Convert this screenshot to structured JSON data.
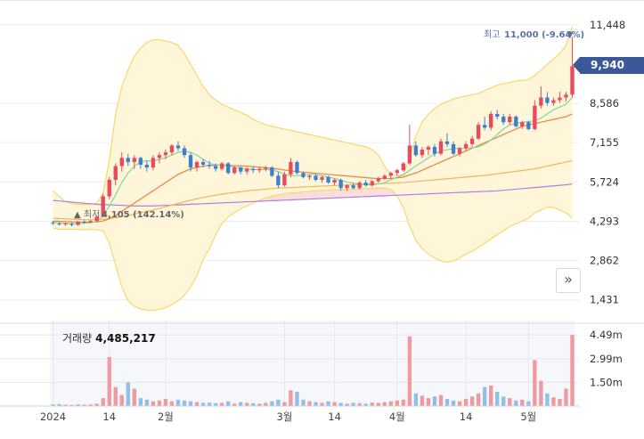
{
  "chart_data": [
    {
      "type": "candlestick",
      "title": "",
      "yticks": [
        "11,448",
        "9,940",
        "8,586",
        "7,155",
        "5,724",
        "4,293",
        "2,862",
        "1,431"
      ],
      "ylim": [
        1000,
        11700
      ],
      "current_price_label": "9,940",
      "current_price": 9940,
      "high_annotation": {
        "prefix": "최고",
        "value": "11,000 (-9.64%)",
        "marker": "▼",
        "price": 11000
      },
      "low_annotation": {
        "prefix": "▲ 최저",
        "value": "4,105 (142.14%)",
        "price": 4105
      },
      "grid": true,
      "candles": [
        [
          4250,
          4300,
          4150,
          4220
        ],
        [
          4200,
          4260,
          4140,
          4180
        ],
        [
          4180,
          4240,
          4120,
          4210
        ],
        [
          4200,
          4250,
          4105,
          4160
        ],
        [
          4160,
          4300,
          4130,
          4280
        ],
        [
          4280,
          4330,
          4200,
          4240
        ],
        [
          4250,
          4340,
          4220,
          4300
        ],
        [
          4300,
          4500,
          4250,
          4460
        ],
        [
          4460,
          5300,
          4420,
          5200
        ],
        [
          5200,
          5900,
          5100,
          5800
        ],
        [
          5800,
          6400,
          5600,
          6300
        ],
        [
          6300,
          6800,
          6100,
          6600
        ],
        [
          6600,
          6750,
          6300,
          6450
        ],
        [
          6450,
          6700,
          6200,
          6600
        ],
        [
          6600,
          6650,
          6200,
          6350
        ],
        [
          6350,
          6500,
          6100,
          6250
        ],
        [
          6250,
          6700,
          6150,
          6600
        ],
        [
          6600,
          6800,
          6400,
          6700
        ],
        [
          6700,
          6900,
          6550,
          6800
        ],
        [
          6800,
          7100,
          6700,
          7050
        ],
        [
          7050,
          7200,
          6850,
          6950
        ],
        [
          6950,
          7050,
          6600,
          6700
        ],
        [
          6700,
          6800,
          6100,
          6250
        ],
        [
          6250,
          6500,
          6100,
          6450
        ],
        [
          6450,
          6550,
          6250,
          6350
        ],
        [
          6350,
          6500,
          6200,
          6300
        ],
        [
          6300,
          6400,
          6100,
          6200
        ],
        [
          6200,
          6450,
          6150,
          6400
        ],
        [
          6400,
          6450,
          6000,
          6050
        ],
        [
          6050,
          6300,
          6000,
          6250
        ],
        [
          6250,
          6300,
          6000,
          6100
        ],
        [
          6100,
          6250,
          6000,
          6200
        ],
        [
          6200,
          6300,
          6050,
          6150
        ],
        [
          6150,
          6250,
          6050,
          6200
        ],
        [
          6200,
          6300,
          6100,
          6250
        ],
        [
          6250,
          6300,
          5900,
          5950
        ],
        [
          5950,
          6100,
          5500,
          5600
        ],
        [
          5600,
          6100,
          5550,
          6000
        ],
        [
          6000,
          6600,
          5900,
          6450
        ],
        [
          6450,
          6500,
          6000,
          6050
        ],
        [
          6050,
          6100,
          5850,
          5900
        ],
        [
          5900,
          6000,
          5800,
          5950
        ],
        [
          5950,
          6000,
          5750,
          5800
        ],
        [
          5800,
          5950,
          5700,
          5900
        ],
        [
          5900,
          5950,
          5650,
          5700
        ],
        [
          5700,
          5850,
          5600,
          5800
        ],
        [
          5800,
          5850,
          5400,
          5500
        ],
        [
          5500,
          5650,
          5400,
          5600
        ],
        [
          5600,
          5700,
          5450,
          5500
        ],
        [
          5500,
          5750,
          5450,
          5700
        ],
        [
          5700,
          5800,
          5550,
          5600
        ],
        [
          5600,
          5800,
          5550,
          5750
        ],
        [
          5750,
          5900,
          5700,
          5850
        ],
        [
          5850,
          6000,
          5800,
          5950
        ],
        [
          5950,
          6100,
          5850,
          6050
        ],
        [
          6050,
          6200,
          5950,
          6150
        ],
        [
          6150,
          6450,
          6100,
          6400
        ],
        [
          6400,
          7800,
          6350,
          7050
        ],
        [
          7050,
          7200,
          6650,
          6700
        ],
        [
          6700,
          7000,
          6600,
          6900
        ],
        [
          6900,
          7050,
          6700,
          7000
        ],
        [
          7000,
          7100,
          6650,
          6750
        ],
        [
          6750,
          7300,
          6700,
          7200
        ],
        [
          7200,
          7500,
          7000,
          7100
        ],
        [
          7100,
          7200,
          6700,
          6750
        ],
        [
          6750,
          7000,
          6650,
          6950
        ],
        [
          6950,
          7200,
          6850,
          7100
        ],
        [
          7100,
          7400,
          7000,
          7300
        ],
        [
          7300,
          7900,
          7250,
          7800
        ],
        [
          7800,
          8100,
          7600,
          7700
        ],
        [
          7700,
          8300,
          7600,
          8200
        ],
        [
          8200,
          8350,
          8000,
          8100
        ],
        [
          8100,
          8200,
          7800,
          7900
        ],
        [
          7900,
          8200,
          7800,
          8100
        ],
        [
          8100,
          8150,
          7700,
          7750
        ],
        [
          7750,
          7950,
          7650,
          7900
        ],
        [
          7900,
          7950,
          7600,
          7650
        ],
        [
          7650,
          8700,
          7600,
          8500
        ],
        [
          8500,
          9200,
          8400,
          8800
        ],
        [
          8800,
          9000,
          8500,
          8600
        ],
        [
          8600,
          8800,
          8500,
          8700
        ],
        [
          8700,
          9000,
          8600,
          8800
        ],
        [
          8800,
          9000,
          8650,
          8900
        ],
        [
          8900,
          11000,
          8800,
          9940
        ]
      ],
      "upper_band": [
        5400,
        5200,
        5000,
        4950,
        4900,
        4900,
        4900,
        4950,
        5300,
        6500,
        8200,
        9200,
        9800,
        10300,
        10600,
        10800,
        10900,
        10900,
        10850,
        10800,
        10700,
        10400,
        10000,
        9600,
        9200,
        8900,
        8700,
        8550,
        8450,
        8350,
        8250,
        8150,
        8000,
        7900,
        7800,
        7750,
        7700,
        7650,
        7600,
        7550,
        7500,
        7450,
        7400,
        7350,
        7300,
        7250,
        7200,
        7150,
        7100,
        7050,
        7000,
        6900,
        6700,
        6300,
        6000,
        5950,
        6000,
        6600,
        7400,
        7900,
        8200,
        8400,
        8550,
        8650,
        8750,
        8800,
        8850,
        8900,
        8950,
        9050,
        9150,
        9250,
        9300,
        9350,
        9400,
        9420,
        9450,
        9600,
        9800,
        10000,
        10200,
        10400,
        10700,
        11400
      ],
      "lower_band": [
        4050,
        4000,
        4000,
        4000,
        3990,
        3990,
        3990,
        3980,
        3950,
        3500,
        2700,
        1900,
        1400,
        1200,
        1100,
        1050,
        1050,
        1080,
        1150,
        1250,
        1400,
        1600,
        1900,
        2300,
        2900,
        3300,
        3800,
        4200,
        4450,
        4600,
        4750,
        4850,
        4950,
        5050,
        5150,
        5200,
        5250,
        5300,
        5320,
        5340,
        5360,
        5380,
        5400,
        5420,
        5430,
        5440,
        5440,
        5450,
        5460,
        5470,
        5480,
        5490,
        5500,
        5500,
        5450,
        5200,
        4800,
        4100,
        3600,
        3300,
        3100,
        2950,
        2850,
        2800,
        2850,
        2950,
        3100,
        3200,
        3350,
        3500,
        3650,
        3800,
        3950,
        4100,
        4200,
        4300,
        4400,
        4600,
        4700,
        4800,
        4800,
        4700,
        4600,
        4400
      ],
      "ma_short": [
        4250,
        4230,
        4220,
        4200,
        4200,
        4220,
        4240,
        4280,
        4500,
        4850,
        5250,
        5700,
        6050,
        6300,
        6450,
        6500,
        6480,
        6550,
        6600,
        6700,
        6800,
        6850,
        6800,
        6700,
        6550,
        6400,
        6350,
        6330,
        6300,
        6260,
        6230,
        6200,
        6180,
        6170,
        6180,
        6160,
        6100,
        6000,
        5950,
        5950,
        5980,
        6000,
        6000,
        5950,
        5900,
        5850,
        5780,
        5720,
        5680,
        5650,
        5620,
        5610,
        5650,
        5700,
        5800,
        5900,
        5980,
        6150,
        6300,
        6450,
        6600,
        6750,
        6850,
        6900,
        6930,
        6950,
        6950,
        6970,
        7000,
        7100,
        7250,
        7450,
        7650,
        7800,
        7850,
        7900,
        7920,
        7950,
        8050,
        8200,
        8350,
        8450,
        8550,
        8800
      ],
      "ma_mid": [
        4300,
        4290,
        4280,
        4270,
        4260,
        4260,
        4260,
        4270,
        4300,
        4380,
        4500,
        4650,
        4800,
        4950,
        5100,
        5250,
        5400,
        5550,
        5700,
        5850,
        6000,
        6100,
        6200,
        6250,
        6300,
        6320,
        6330,
        6340,
        6330,
        6320,
        6310,
        6300,
        6280,
        6260,
        6240,
        6220,
        6190,
        6160,
        6130,
        6100,
        6080,
        6060,
        6040,
        6020,
        6000,
        5980,
        5960,
        5940,
        5920,
        5900,
        5880,
        5860,
        5850,
        5850,
        5850,
        5870,
        5900,
        5980,
        6050,
        6150,
        6250,
        6350,
        6450,
        6550,
        6650,
        6750,
        6850,
        6950,
        7050,
        7150,
        7250,
        7350,
        7450,
        7550,
        7650,
        7750,
        7800,
        7850,
        7900,
        7950,
        8000,
        8050,
        8100,
        8200
      ],
      "ma_long": [
        4400,
        4390,
        4380,
        4370,
        4360,
        4350,
        4350,
        4350,
        4360,
        4390,
        4420,
        4460,
        4500,
        4550,
        4600,
        4650,
        4700,
        4760,
        4820,
        4880,
        4940,
        5000,
        5060,
        5110,
        5160,
        5200,
        5240,
        5280,
        5310,
        5340,
        5370,
        5400,
        5420,
        5440,
        5460,
        5480,
        5500,
        5510,
        5520,
        5530,
        5540,
        5550,
        5560,
        5570,
        5580,
        5590,
        5600,
        5610,
        5620,
        5630,
        5640,
        5650,
        5660,
        5670,
        5680,
        5690,
        5700,
        5720,
        5740,
        5760,
        5780,
        5800,
        5820,
        5840,
        5860,
        5880,
        5900,
        5920,
        5940,
        5960,
        5990,
        6020,
        6050,
        6080,
        6110,
        6140,
        6170,
        6200,
        6250,
        6300,
        6350,
        6400,
        6450,
        6500
      ],
      "ma_longest": [
        5050,
        5030,
        5010,
        4990,
        4970,
        4950,
        4930,
        4910,
        4900,
        4890,
        4880,
        4870,
        4860,
        4850,
        4850,
        4850,
        4850,
        4860,
        4870,
        4880,
        4890,
        4900,
        4910,
        4920,
        4930,
        4940,
        4950,
        4960,
        4970,
        4980,
        4990,
        5000,
        5010,
        5020,
        5030,
        5040,
        5050,
        5060,
        5070,
        5080,
        5090,
        5100,
        5110,
        5120,
        5130,
        5140,
        5150,
        5160,
        5170,
        5180,
        5190,
        5200,
        5210,
        5220,
        5230,
        5240,
        5250,
        5260,
        5270,
        5280,
        5290,
        5300,
        5310,
        5320,
        5330,
        5340,
        5350,
        5360,
        5370,
        5380,
        5390,
        5400,
        5420,
        5440,
        5460,
        5480,
        5500,
        5520,
        5540,
        5560,
        5580,
        5600,
        5620,
        5650
      ]
    },
    {
      "type": "bar",
      "title_label": "거래량",
      "title_value": "4,485,217",
      "yticks": [
        "4.49m",
        "2.99m",
        "1.50m"
      ],
      "ymax": 5400000,
      "xticks": [
        {
          "i": 0,
          "label": "2024"
        },
        {
          "i": 9,
          "label": "14"
        },
        {
          "i": 18,
          "label": "2월"
        },
        {
          "i": 37,
          "label": "3월"
        },
        {
          "i": 45,
          "label": "14"
        },
        {
          "i": 55,
          "label": "4월"
        },
        {
          "i": 66,
          "label": "14"
        },
        {
          "i": 76,
          "label": "5월"
        }
      ],
      "values": [
        100000,
        120000,
        90000,
        80000,
        110000,
        90000,
        100000,
        150000,
        500000,
        3100000,
        1200000,
        700000,
        1500000,
        1100000,
        500000,
        400000,
        300000,
        350000,
        450000,
        300000,
        400000,
        350000,
        300000,
        250000,
        200000,
        220000,
        180000,
        200000,
        300000,
        150000,
        250000,
        200000,
        180000,
        150000,
        200000,
        300000,
        400000,
        250000,
        1000000,
        900000,
        400000,
        300000,
        250000,
        200000,
        300000,
        250000,
        200000,
        150000,
        200000,
        180000,
        150000,
        220000,
        200000,
        250000,
        300000,
        350000,
        400000,
        4400000,
        800000,
        650000,
        500000,
        600000,
        700000,
        450000,
        350000,
        300000,
        450000,
        600000,
        800000,
        1200000,
        1300000,
        900000,
        600000,
        500000,
        350000,
        400000,
        300000,
        2900000,
        1600000,
        800000,
        550000,
        450000,
        1100000,
        4485217
      ],
      "directions": [
        "d",
        "d",
        "u",
        "d",
        "u",
        "d",
        "u",
        "u",
        "u",
        "u",
        "u",
        "u",
        "d",
        "u",
        "d",
        "d",
        "u",
        "u",
        "u",
        "u",
        "d",
        "d",
        "d",
        "u",
        "d",
        "d",
        "d",
        "u",
        "d",
        "u",
        "d",
        "u",
        "d",
        "u",
        "u",
        "d",
        "d",
        "u",
        "u",
        "d",
        "d",
        "u",
        "d",
        "u",
        "d",
        "u",
        "d",
        "u",
        "d",
        "u",
        "d",
        "u",
        "u",
        "u",
        "u",
        "u",
        "u",
        "u",
        "d",
        "u",
        "u",
        "d",
        "u",
        "d",
        "d",
        "u",
        "u",
        "u",
        "u",
        "d",
        "u",
        "d",
        "d",
        "u",
        "d",
        "u",
        "d",
        "u",
        "u",
        "d",
        "u",
        "u",
        "u",
        "u"
      ]
    }
  ],
  "colors": {
    "up": "#e84a5f",
    "down": "#3f7fd0",
    "vol_up": "#ee9a9f",
    "vol_down": "#93bfe6",
    "band_fill": "#fff6da",
    "band_line": "#f7d560",
    "ma_short": "#7cd6a8",
    "ma_mid": "#e8833a",
    "ma_long": "#f2b45e",
    "ma_longest": "#b07fe0",
    "cloud_red": "#f8d0cc",
    "cloud_blue": "#c9daf1",
    "high_label": "#5773a8",
    "low_label": "#666666",
    "price_tag": "#3b5998"
  },
  "nav_button_symbol": "»"
}
